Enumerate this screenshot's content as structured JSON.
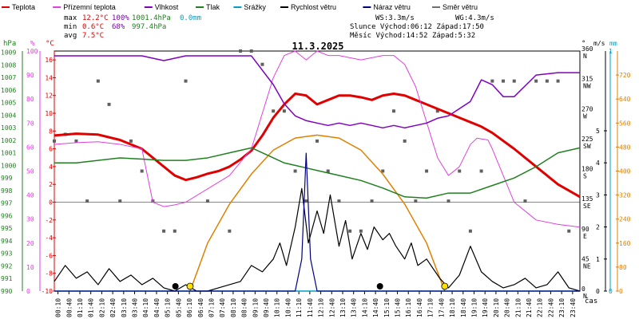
{
  "chart_data": {
    "type": "line",
    "title": "11.3.2025",
    "legend": [
      {
        "label": "Teplota",
        "color": "#e00000"
      },
      {
        "label": "Přízemní teplota",
        "color": "#e040e0"
      },
      {
        "label": "Vlhkost",
        "color": "#8000c0"
      },
      {
        "label": "Tlak",
        "color": "#208020"
      },
      {
        "label": "Srážky",
        "color": "#00a0c0"
      },
      {
        "label": "Rychlost větru",
        "color": "#000000"
      },
      {
        "label": "Náraz větru",
        "color": "#000080"
      },
      {
        "label": "Směr větru",
        "color": "#707070"
      }
    ],
    "stats": {
      "max_label": "max",
      "min_label": "min",
      "avg_label": "avg",
      "max_temp": "12.2°C",
      "max_hum": "100%",
      "max_press": "1001.4hPa",
      "max_rain": "0.0mm",
      "min_temp": "0.6°C",
      "min_hum": "68%",
      "min_press": "997.4hPa",
      "avg_temp": "7.5°C",
      "ws": "WS:3.3m/s",
      "wg": "WG:4.3m/s",
      "sun": "Slunce Východ:06:12 Západ:17:50",
      "moon": "Měsíc Východ:14:52 Západ:5:32"
    },
    "axes": {
      "hpa_unit": "hPa",
      "pct_unit": "%",
      "temp_unit": "°C",
      "dir_unit": "°",
      "wind_unit": "m/s",
      "rain_unit": "mm",
      "time_unit": "čas",
      "hpa_ticks": [
        "1009",
        "1008",
        "1007",
        "1006",
        "1005",
        "1004",
        "1003",
        "1002",
        "1001",
        "1000",
        "999",
        "998",
        "997",
        "996",
        "995",
        "994",
        "993",
        "992",
        "991",
        "990"
      ],
      "pct_ticks": [
        "100",
        "90",
        "80",
        "70",
        "60",
        "50",
        "40",
        "30",
        "20",
        "10",
        "0"
      ],
      "temp_ticks": [
        "16",
        "14",
        "12",
        "10",
        "8",
        "6",
        "4",
        "2",
        "0",
        "-2",
        "-4",
        "-6",
        "-8",
        "-10"
      ],
      "dir_ticks": [
        "360",
        "315",
        "270",
        "225",
        "180",
        "135",
        "90",
        "45",
        "0"
      ],
      "dir_names": [
        "N",
        "NW",
        "W",
        "SW",
        "S",
        "SE",
        "E",
        "NE",
        "N"
      ],
      "wind_ticks": [
        "5",
        "4",
        "3",
        "2",
        "1",
        "0"
      ],
      "sun_ticks": [
        "720",
        "640",
        "560",
        "480",
        "400",
        "320",
        "240",
        "160",
        "80",
        "0"
      ],
      "rain_ticks": [
        "1",
        "0"
      ],
      "time_ticks": [
        "00:10",
        "00:40",
        "01:10",
        "01:40",
        "02:10",
        "02:40",
        "03:10",
        "03:40",
        "04:10",
        "04:40",
        "05:10",
        "05:40",
        "06:10",
        "06:40",
        "07:10",
        "07:40",
        "08:10",
        "08:40",
        "09:10",
        "09:40",
        "10:10",
        "10:40",
        "11:10",
        "11:40",
        "12:10",
        "12:40",
        "13:10",
        "13:40",
        "14:10",
        "14:40",
        "15:10",
        "15:40",
        "16:10",
        "16:40",
        "17:10",
        "17:40",
        "18:10",
        "18:40",
        "19:10",
        "19:40",
        "20:10",
        "20:40",
        "21:10",
        "21:40",
        "22:10",
        "22:40",
        "23:10",
        "23:40"
      ]
    },
    "series": [
      {
        "name": "Teplota",
        "color": "#e00000",
        "axis": "temp",
        "x": [
          0,
          1,
          2,
          3,
          4,
          5,
          5.5,
          6,
          6.5,
          7,
          7.5,
          8,
          8.5,
          9,
          9.5,
          10,
          10.5,
          11,
          11.5,
          12,
          12.5,
          13,
          13.5,
          14,
          14.5,
          15,
          15.5,
          16,
          16.5,
          17,
          17.5,
          18,
          18.5,
          19,
          19.5,
          20,
          21,
          22,
          23,
          24
        ],
        "y": [
          7.5,
          7.7,
          7.6,
          7.0,
          6.0,
          4.0,
          3.0,
          2.5,
          2.8,
          3.2,
          3.5,
          4.0,
          4.8,
          5.8,
          7.5,
          9.5,
          11.0,
          12.2,
          12.0,
          11.0,
          11.5,
          12.0,
          12.0,
          11.8,
          11.5,
          12.0,
          12.2,
          12.0,
          11.5,
          11.0,
          10.5,
          10.0,
          9.5,
          9.0,
          8.5,
          7.8,
          6.0,
          4.0,
          2.0,
          0.6
        ]
      },
      {
        "name": "Přízemní teplota",
        "color": "#e040e0",
        "axis": "temp",
        "x": [
          0,
          1,
          2,
          3,
          4,
          4.5,
          5,
          5.5,
          6,
          7,
          8,
          9,
          9.5,
          10,
          10.5,
          11,
          11.5,
          12,
          12.5,
          13,
          14,
          15,
          15.5,
          16,
          16.5,
          17,
          17.5,
          18,
          18.5,
          19,
          19.3,
          19.8,
          20,
          20.5,
          21,
          22,
          23,
          24
        ],
        "y": [
          6.5,
          6.7,
          6.8,
          6.5,
          6.0,
          0.0,
          -0.5,
          -0.3,
          0.0,
          1.5,
          3.0,
          6.0,
          10.0,
          14.0,
          16.5,
          17.0,
          16.0,
          17.0,
          16.5,
          16.5,
          16.0,
          16.5,
          16.5,
          15.5,
          13.0,
          9.0,
          5.0,
          3.0,
          4.0,
          6.5,
          7.2,
          7.0,
          6.0,
          3.0,
          0,
          -2.0,
          -2.5,
          -2.8
        ]
      },
      {
        "name": "Vlhkost",
        "color": "#8000c0",
        "axis": "pct",
        "x": [
          0,
          1,
          2,
          3,
          4,
          5,
          6,
          7,
          8,
          9,
          10,
          10.5,
          11,
          11.5,
          12,
          12.5,
          13,
          13.5,
          14,
          14.5,
          15,
          15.5,
          16,
          16.5,
          17,
          17.5,
          18,
          18.5,
          19,
          19.5,
          20,
          20.5,
          21,
          22,
          23,
          24
        ],
        "y": [
          98,
          98,
          98,
          98,
          98,
          96,
          98,
          98,
          98,
          98,
          86,
          78,
          73,
          71,
          70,
          69,
          70,
          69,
          70,
          69,
          68,
          69,
          68,
          69,
          70,
          72,
          73,
          76,
          79,
          88,
          86,
          81,
          81,
          90,
          91,
          91
        ]
      },
      {
        "name": "Tlak",
        "color": "#208020",
        "axis": "hpa",
        "x": [
          0,
          1,
          2,
          3,
          4,
          5,
          6,
          7,
          8,
          9,
          10,
          10.5,
          11,
          11.5,
          12,
          13,
          14,
          15,
          16,
          17,
          18,
          19,
          20,
          21,
          22,
          23,
          24
        ],
        "y": [
          1000.2,
          1000.2,
          1000.4,
          1000.6,
          1000.5,
          1000.4,
          1000.4,
          1000.6,
          1001.0,
          1001.4,
          1000.6,
          1000.2,
          1000.0,
          999.8,
          999.6,
          999.2,
          998.8,
          998.2,
          997.5,
          997.4,
          997.8,
          997.8,
          998.4,
          999.0,
          999.9,
          1001.0,
          1001.4
        ]
      },
      {
        "name": "Srážky",
        "color": "#00a0c0",
        "axis": "rain",
        "x": [
          0,
          24
        ],
        "y": [
          0,
          0
        ]
      },
      {
        "name": "Rychlost větru",
        "color": "#000000",
        "axis": "wind",
        "x": [
          0,
          0.5,
          1,
          1.5,
          2,
          2.5,
          3,
          3.5,
          4,
          4.5,
          5,
          5.5,
          6,
          6.5,
          7,
          7.5,
          8,
          8.5,
          9,
          9.5,
          10,
          10.3,
          10.6,
          11,
          11.3,
          11.6,
          12,
          12.3,
          12.6,
          13,
          13.3,
          13.6,
          14,
          14.3,
          14.6,
          15,
          15.3,
          15.6,
          16,
          16.3,
          16.6,
          17,
          17.3,
          17.6,
          18,
          18.5,
          19,
          19.5,
          20,
          20.5,
          21,
          21.5,
          22,
          22.5,
          23,
          23.5,
          24
        ],
        "y": [
          0.3,
          0.8,
          0.4,
          0.6,
          0.2,
          0.7,
          0.3,
          0.5,
          0.2,
          0.4,
          0.1,
          0,
          0.2,
          0,
          0,
          0.1,
          0.2,
          0.3,
          0.8,
          0.6,
          1.0,
          1.5,
          0.8,
          2.0,
          3.2,
          1.5,
          2.5,
          1.8,
          3.0,
          1.4,
          2.2,
          1.0,
          1.8,
          1.3,
          2.0,
          1.6,
          1.8,
          1.4,
          1.0,
          1.5,
          0.8,
          1.0,
          0.7,
          0.4,
          0.1,
          0.5,
          1.4,
          0.6,
          0.3,
          0.1,
          0.2,
          0.4,
          0.1,
          0.2,
          0.6,
          0.1,
          0
        ]
      },
      {
        "name": "Náraz větru",
        "color": "#000080",
        "axis": "wind",
        "x": [
          0,
          11,
          11.3,
          11.5,
          11.7,
          12,
          24
        ],
        "y": [
          0,
          0,
          1.0,
          4.3,
          1.0,
          0,
          0
        ]
      }
    ],
    "sun_elevation": {
      "color": "#e08000",
      "x": [
        6.2,
        7,
        8,
        9,
        10,
        11,
        12,
        13,
        14,
        15,
        16,
        17,
        17.83
      ],
      "y": [
        0,
        160,
        290,
        390,
        470,
        510,
        520,
        510,
        470,
        390,
        290,
        160,
        0
      ]
    },
    "wind_dir_points": [
      [
        0,
        225
      ],
      [
        0.5,
        235
      ],
      [
        1,
        225
      ],
      [
        1.5,
        135
      ],
      [
        2,
        315
      ],
      [
        2.5,
        280
      ],
      [
        3,
        135
      ],
      [
        3.5,
        225
      ],
      [
        4,
        180
      ],
      [
        4.5,
        135
      ],
      [
        5,
        90
      ],
      [
        5.5,
        90
      ],
      [
        6,
        315
      ],
      [
        7,
        135
      ],
      [
        8,
        90
      ],
      [
        8.5,
        360
      ],
      [
        9,
        360
      ],
      [
        9.5,
        340
      ],
      [
        10,
        270
      ],
      [
        10.5,
        270
      ],
      [
        11,
        180
      ],
      [
        11.5,
        135
      ],
      [
        12,
        225
      ],
      [
        12.5,
        180
      ],
      [
        13,
        135
      ],
      [
        13.5,
        90
      ],
      [
        14,
        90
      ],
      [
        14.5,
        135
      ],
      [
        15,
        180
      ],
      [
        15.5,
        270
      ],
      [
        16,
        225
      ],
      [
        16.5,
        135
      ],
      [
        17,
        180
      ],
      [
        17.5,
        270
      ],
      [
        18,
        135
      ],
      [
        18.5,
        180
      ],
      [
        19,
        90
      ],
      [
        19.5,
        180
      ],
      [
        20,
        315
      ],
      [
        20.5,
        315
      ],
      [
        21,
        315
      ],
      [
        21.5,
        135
      ],
      [
        22,
        315
      ],
      [
        22.5,
        315
      ],
      [
        23,
        315
      ],
      [
        23.5,
        90
      ]
    ],
    "moon_markers": [
      {
        "x": 5.53,
        "label": "moon-set"
      },
      {
        "x": 14.87,
        "label": "moon-rise"
      }
    ],
    "sun_markers": [
      {
        "x": 6.2,
        "label": "sun-rise"
      },
      {
        "x": 17.83,
        "label": "sun-set"
      }
    ]
  }
}
